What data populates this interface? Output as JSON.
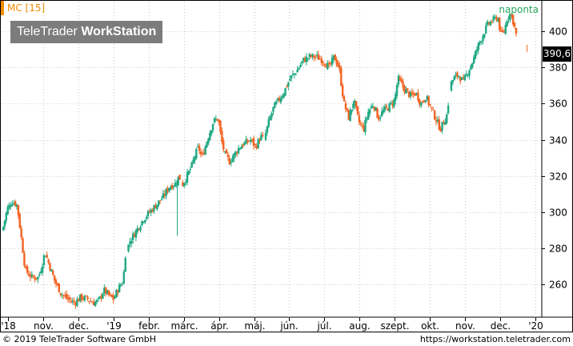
{
  "header": {
    "instrument": "MC [15]",
    "period": "naponta",
    "logo_light": "TeleTrader ",
    "logo_bold": "WorkStation",
    "last_price": "390,6"
  },
  "footer": {
    "copyright": "© 2019 TeleTrader Software GmbH",
    "url": "https://workstation.teletrader.com"
  },
  "colors": {
    "up": "#1ea882",
    "down": "#f26322",
    "grid": "#c8c8c8",
    "accent": "#f28c00"
  },
  "chart_data": {
    "type": "candlestick",
    "x_tick_labels": [
      "'18",
      "nov.",
      "dec.",
      "'19",
      "febr.",
      "márc.",
      "ápr.",
      "máj.",
      "jún.",
      "júl.",
      "aug.",
      "szept.",
      "okt.",
      "nov.",
      "dec.",
      "'20"
    ],
    "y_ticks": [
      260,
      280,
      300,
      320,
      340,
      360,
      380,
      400
    ],
    "ylim": [
      242,
      416
    ],
    "grid": true,
    "close_anchors": [
      {
        "t": 0.0,
        "v": 290
      },
      {
        "t": 0.3,
        "v": 302
      },
      {
        "t": 0.6,
        "v": 306
      },
      {
        "t": 0.9,
        "v": 304
      },
      {
        "t": 1.1,
        "v": 290
      },
      {
        "t": 1.4,
        "v": 268
      },
      {
        "t": 1.8,
        "v": 264
      },
      {
        "t": 2.2,
        "v": 264
      },
      {
        "t": 2.4,
        "v": 270
      },
      {
        "t": 2.6,
        "v": 278
      },
      {
        "t": 2.9,
        "v": 270
      },
      {
        "t": 3.2,
        "v": 262
      },
      {
        "t": 3.6,
        "v": 255
      },
      {
        "t": 4.0,
        "v": 252
      },
      {
        "t": 4.4,
        "v": 250
      },
      {
        "t": 4.8,
        "v": 253
      },
      {
        "t": 5.2,
        "v": 252
      },
      {
        "t": 5.6,
        "v": 250
      },
      {
        "t": 5.9,
        "v": 251
      },
      {
        "t": 6.2,
        "v": 257
      },
      {
        "t": 6.5,
        "v": 254
      },
      {
        "t": 6.8,
        "v": 252
      },
      {
        "t": 7.1,
        "v": 258
      },
      {
        "t": 7.4,
        "v": 262
      },
      {
        "t": 7.5,
        "v": 276
      },
      {
        "t": 7.8,
        "v": 284
      },
      {
        "t": 8.2,
        "v": 290
      },
      {
        "t": 8.6,
        "v": 296
      },
      {
        "t": 9.0,
        "v": 300
      },
      {
        "t": 9.4,
        "v": 304
      },
      {
        "t": 9.8,
        "v": 308
      },
      {
        "t": 10.2,
        "v": 314
      },
      {
        "t": 10.6,
        "v": 316
      },
      {
        "t": 10.8,
        "v": 320
      },
      {
        "t": 11.0,
        "v": 315
      },
      {
        "t": 11.3,
        "v": 320
      },
      {
        "t": 11.6,
        "v": 326
      },
      {
        "t": 11.8,
        "v": 332
      },
      {
        "t": 12.0,
        "v": 336
      },
      {
        "t": 12.2,
        "v": 330
      },
      {
        "t": 12.6,
        "v": 342
      },
      {
        "t": 12.9,
        "v": 350
      },
      {
        "t": 13.2,
        "v": 352
      },
      {
        "t": 13.4,
        "v": 340
      },
      {
        "t": 13.6,
        "v": 332
      },
      {
        "t": 13.9,
        "v": 328
      },
      {
        "t": 14.2,
        "v": 332
      },
      {
        "t": 14.5,
        "v": 336
      },
      {
        "t": 14.8,
        "v": 338
      },
      {
        "t": 15.2,
        "v": 340
      },
      {
        "t": 15.5,
        "v": 336
      },
      {
        "t": 15.8,
        "v": 342
      },
      {
        "t": 16.0,
        "v": 340
      },
      {
        "t": 16.3,
        "v": 350
      },
      {
        "t": 16.6,
        "v": 358
      },
      {
        "t": 16.9,
        "v": 362
      },
      {
        "t": 17.2,
        "v": 366
      },
      {
        "t": 17.6,
        "v": 374
      },
      {
        "t": 18.0,
        "v": 378
      },
      {
        "t": 18.4,
        "v": 384
      },
      {
        "t": 18.8,
        "v": 386
      },
      {
        "t": 19.2,
        "v": 386
      },
      {
        "t": 19.6,
        "v": 384
      },
      {
        "t": 20.0,
        "v": 380
      },
      {
        "t": 20.3,
        "v": 386
      },
      {
        "t": 20.6,
        "v": 380
      },
      {
        "t": 20.9,
        "v": 360
      },
      {
        "t": 21.2,
        "v": 352
      },
      {
        "t": 21.5,
        "v": 362
      },
      {
        "t": 21.8,
        "v": 350
      },
      {
        "t": 22.1,
        "v": 346
      },
      {
        "t": 22.4,
        "v": 356
      },
      {
        "t": 22.7,
        "v": 360
      },
      {
        "t": 23.0,
        "v": 352
      },
      {
        "t": 23.3,
        "v": 356
      },
      {
        "t": 23.6,
        "v": 358
      },
      {
        "t": 24.0,
        "v": 362
      },
      {
        "t": 24.2,
        "v": 374
      },
      {
        "t": 24.6,
        "v": 368
      },
      {
        "t": 25.0,
        "v": 364
      },
      {
        "t": 25.3,
        "v": 366
      },
      {
        "t": 25.6,
        "v": 360
      },
      {
        "t": 25.9,
        "v": 364
      },
      {
        "t": 26.2,
        "v": 358
      },
      {
        "t": 26.5,
        "v": 352
      },
      {
        "t": 26.8,
        "v": 346
      },
      {
        "t": 27.0,
        "v": 350
      },
      {
        "t": 27.2,
        "v": 354
      },
      {
        "t": 27.4,
        "v": 370
      },
      {
        "t": 27.6,
        "v": 374
      },
      {
        "t": 27.9,
        "v": 376
      },
      {
        "t": 28.2,
        "v": 372
      },
      {
        "t": 28.5,
        "v": 378
      },
      {
        "t": 28.8,
        "v": 384
      },
      {
        "t": 29.1,
        "v": 392
      },
      {
        "t": 29.4,
        "v": 398
      },
      {
        "t": 29.7,
        "v": 404
      },
      {
        "t": 30.0,
        "v": 406
      },
      {
        "t": 30.3,
        "v": 408
      },
      {
        "t": 30.5,
        "v": 398
      },
      {
        "t": 30.7,
        "v": 400
      },
      {
        "t": 30.9,
        "v": 408
      },
      {
        "t": 31.1,
        "v": 410
      },
      {
        "t": 31.3,
        "v": 404
      },
      {
        "t": 31.5,
        "v": 395
      }
    ],
    "gap_ranges": [
      [
        7.55,
        7.62
      ],
      [
        10.9,
        11.0
      ],
      [
        12.25,
        12.3
      ],
      [
        16.0,
        16.05
      ],
      [
        23.05,
        23.1
      ],
      [
        27.3,
        27.4
      ]
    ],
    "spike": {
      "t": 10.7,
      "low": 287
    },
    "final_point": {
      "t": 32.1,
      "v": 390.6
    }
  }
}
